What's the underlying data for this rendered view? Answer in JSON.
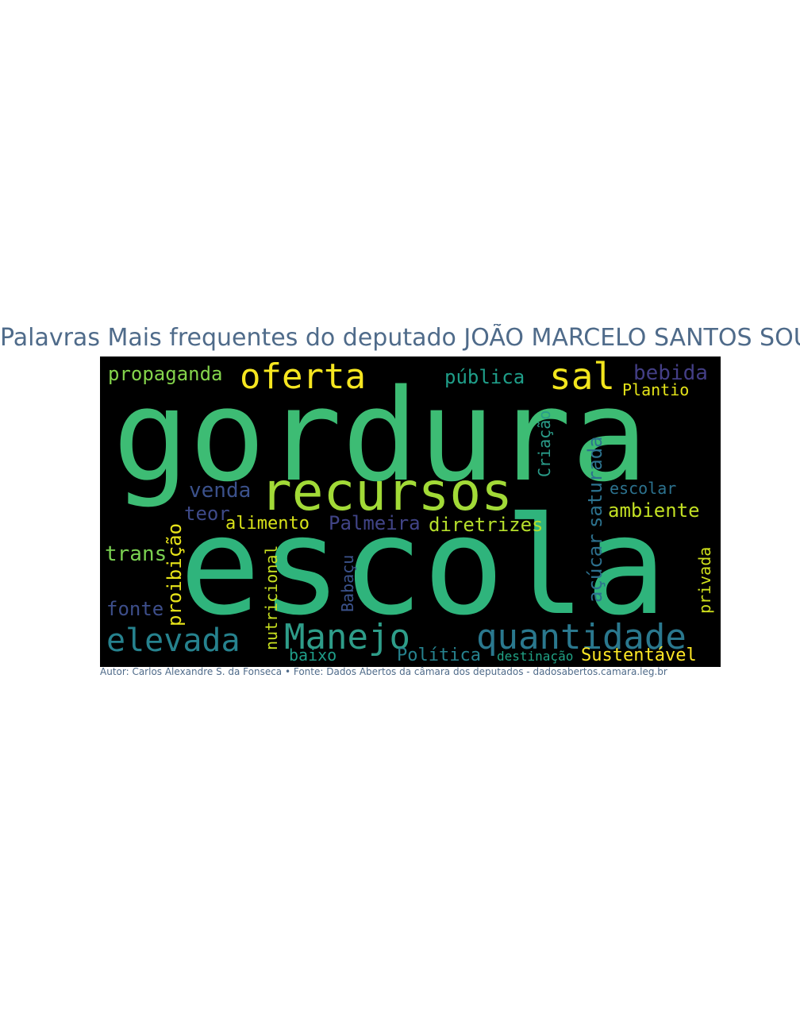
{
  "title": "Palavras Mais frequentes do deputado JOÃO MARCELO SANTOS SOUZA",
  "caption": "Autor: Carlos Alexandre S. da Fonseca • Fonte: Dados Abertos da câmara dos deputados - dadosabertos.camara.leg.br",
  "colors": {
    "background": "#000000",
    "title_text": "#4f6b8a",
    "palette": [
      "#fde725",
      "#b5de2b",
      "#6ece58",
      "#35b779",
      "#1f9e89",
      "#26828e",
      "#31688e",
      "#3e4989",
      "#482878"
    ]
  },
  "words": {
    "gordura": "gordura",
    "escola": "escola",
    "recursos": "recursos",
    "quantidade": "quantidade",
    "manejo": "Manejo",
    "elevada": "elevada",
    "oferta": "oferta",
    "sal": "sal",
    "propaganda": "propaganda",
    "publica": "pública",
    "bebida": "bebida",
    "plantio": "Plantio",
    "criacao": "Criação",
    "saturada": "saturada",
    "escolar": "escolar",
    "ambiente": "ambiente",
    "venda": "venda",
    "teor": "teor",
    "alimento": "alimento",
    "palmeira": "Palmeira",
    "diretrizes": "diretrizes",
    "acucar": "açúcar",
    "trans": "trans",
    "proibicao": "proibição",
    "nutricional": "nutricional",
    "babacu": "Babaçu",
    "privada": "privada",
    "fonte": "fonte",
    "baixo": "baixo",
    "politica": "Política",
    "destinacao": "destinação",
    "sustentavel": "Sustentável"
  }
}
